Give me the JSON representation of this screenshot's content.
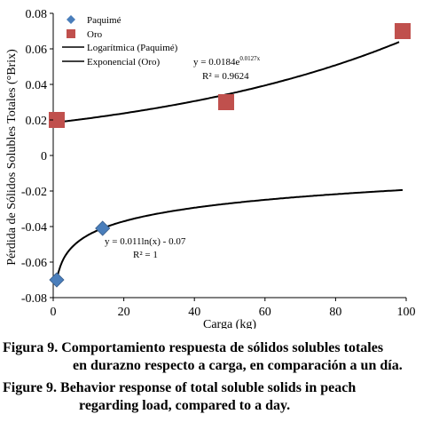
{
  "chart_data": {
    "type": "scatter",
    "xlabel": "Carga (kg)",
    "ylabel": "Pérdida de Sólidos Solubles Totales (°Brix)",
    "xlim": [
      0,
      100
    ],
    "ylim": [
      -0.08,
      0.08
    ],
    "x_ticks": [
      "0",
      "20",
      "40",
      "60",
      "80",
      "100"
    ],
    "y_ticks": [
      "0.08",
      "0.06",
      "0.04",
      "0.02",
      "0",
      "-0.02",
      "-0.04",
      "-0.06",
      "-0.08"
    ],
    "grid": false,
    "legend_position": "top-left",
    "series": [
      {
        "name": "Paquimé",
        "marker": "diamond",
        "color": "#4a7ebb",
        "points": [
          {
            "x": 1,
            "y": -0.07
          },
          {
            "x": 14,
            "y": -0.041
          }
        ]
      },
      {
        "name": "Oro",
        "marker": "square",
        "color": "#c0504d",
        "points": [
          {
            "x": 1,
            "y": 0.02
          },
          {
            "x": 49,
            "y": 0.03
          },
          {
            "x": 99,
            "y": 0.07
          }
        ]
      }
    ],
    "trendlines": [
      {
        "name": "Logarítmica (Paquimé)",
        "kind": "log",
        "a": 0.011,
        "b": -0.07,
        "x_range": [
          1,
          99
        ],
        "equation_text": "y = 0.011ln(x) - 0.07",
        "r2_text": "R² = 1"
      },
      {
        "name": "Exponencial (Oro)",
        "kind": "exp",
        "a": 0.0184,
        "k": 0.0127,
        "x_range": [
          1,
          98
        ],
        "equation_prefix": "y = 0.0184e",
        "equation_exponent": "0.0127x",
        "r2_text": "R² = 0.9624"
      }
    ]
  },
  "caption": {
    "es_label": "Figura 9.",
    "es_line1": "Comportamiento respuesta de sólidos solubles totales",
    "es_line2": "en durazno respecto a carga, en comparación a un día.",
    "en_label": "Figure 9.",
    "en_line1": "Behavior response of total soluble solids in peach",
    "en_line2": "regarding load, compared to a day."
  }
}
